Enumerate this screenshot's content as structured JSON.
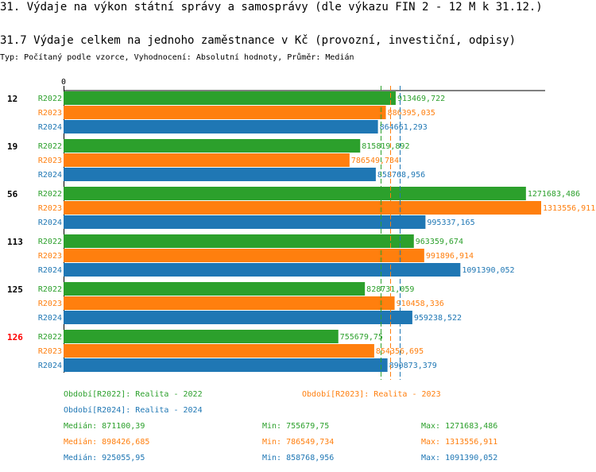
{
  "title": "31. Výdaje na výkon státní správy a samosprávy (dle výkazu FIN 2 - 12 M k 31.12.)",
  "subtitle": "31.7 Výdaje celkem na jednoho zaměstnance v Kč (provozní, investiční, odpisy)",
  "type_line": "Typ: Počítaný podle vzorce, Vyhodnocení: Absolutní hodnoty, Průměr: Medián",
  "colors": {
    "R2022": "#2ca02c",
    "R2023": "#ff7f0e",
    "R2024": "#1f77b4",
    "highlight": "#ff0000",
    "text": "#000000"
  },
  "chart_data": {
    "type": "bar",
    "orientation": "horizontal",
    "axis_zero_label": "0",
    "xlim": [
      0,
      1313556.911
    ],
    "series_names": [
      "R2022",
      "R2023",
      "R2024"
    ],
    "groups": [
      {
        "label": "12",
        "highlight": false,
        "values": [
          913469.722,
          886395.035,
          864661.293
        ],
        "labels": [
          "913469,722",
          "886395,035",
          "864661,293"
        ]
      },
      {
        "label": "19",
        "highlight": false,
        "values": [
          815819.892,
          786549.734,
          858768.956
        ],
        "labels": [
          "815819,892",
          "786549,734",
          "858768,956"
        ]
      },
      {
        "label": "56",
        "highlight": false,
        "values": [
          1271683.486,
          1313556.911,
          995337.165
        ],
        "labels": [
          "1271683,486",
          "1313556,911",
          "995337,165"
        ]
      },
      {
        "label": "113",
        "highlight": false,
        "values": [
          963359.674,
          991896.914,
          1091390.052
        ],
        "labels": [
          "963359,674",
          "991896,914",
          "1091390,052"
        ]
      },
      {
        "label": "125",
        "highlight": false,
        "values": [
          828731.059,
          910458.336,
          959238.522
        ],
        "labels": [
          "828731,059",
          "910458,336",
          "959238,522"
        ]
      },
      {
        "label": "126",
        "highlight": true,
        "values": [
          755679.75,
          854356.695,
          890873.379
        ],
        "labels": [
          "755679,75",
          "854356,695",
          "890873,379"
        ]
      }
    ],
    "median_lines": [
      871100.39,
      898426.685,
      925055.95
    ],
    "legend": [
      {
        "series": "R2022",
        "text": "Období[R2022]: Realita - 2022"
      },
      {
        "series": "R2023",
        "text": "Období[R2023]: Realita - 2023"
      },
      {
        "series": "R2024",
        "text": "Období[R2024]: Realita - 2024"
      }
    ],
    "stats": [
      {
        "series": "R2022",
        "median": "Medián: 871100,39",
        "min": "Min: 755679,75",
        "max": "Max: 1271683,486"
      },
      {
        "series": "R2023",
        "median": "Medián: 898426,685",
        "min": "Min: 786549,734",
        "max": "Max: 1313556,911"
      },
      {
        "series": "R2024",
        "median": "Medián: 925055,95",
        "min": "Min: 858768,956",
        "max": "Max: 1091390,052"
      }
    ]
  }
}
